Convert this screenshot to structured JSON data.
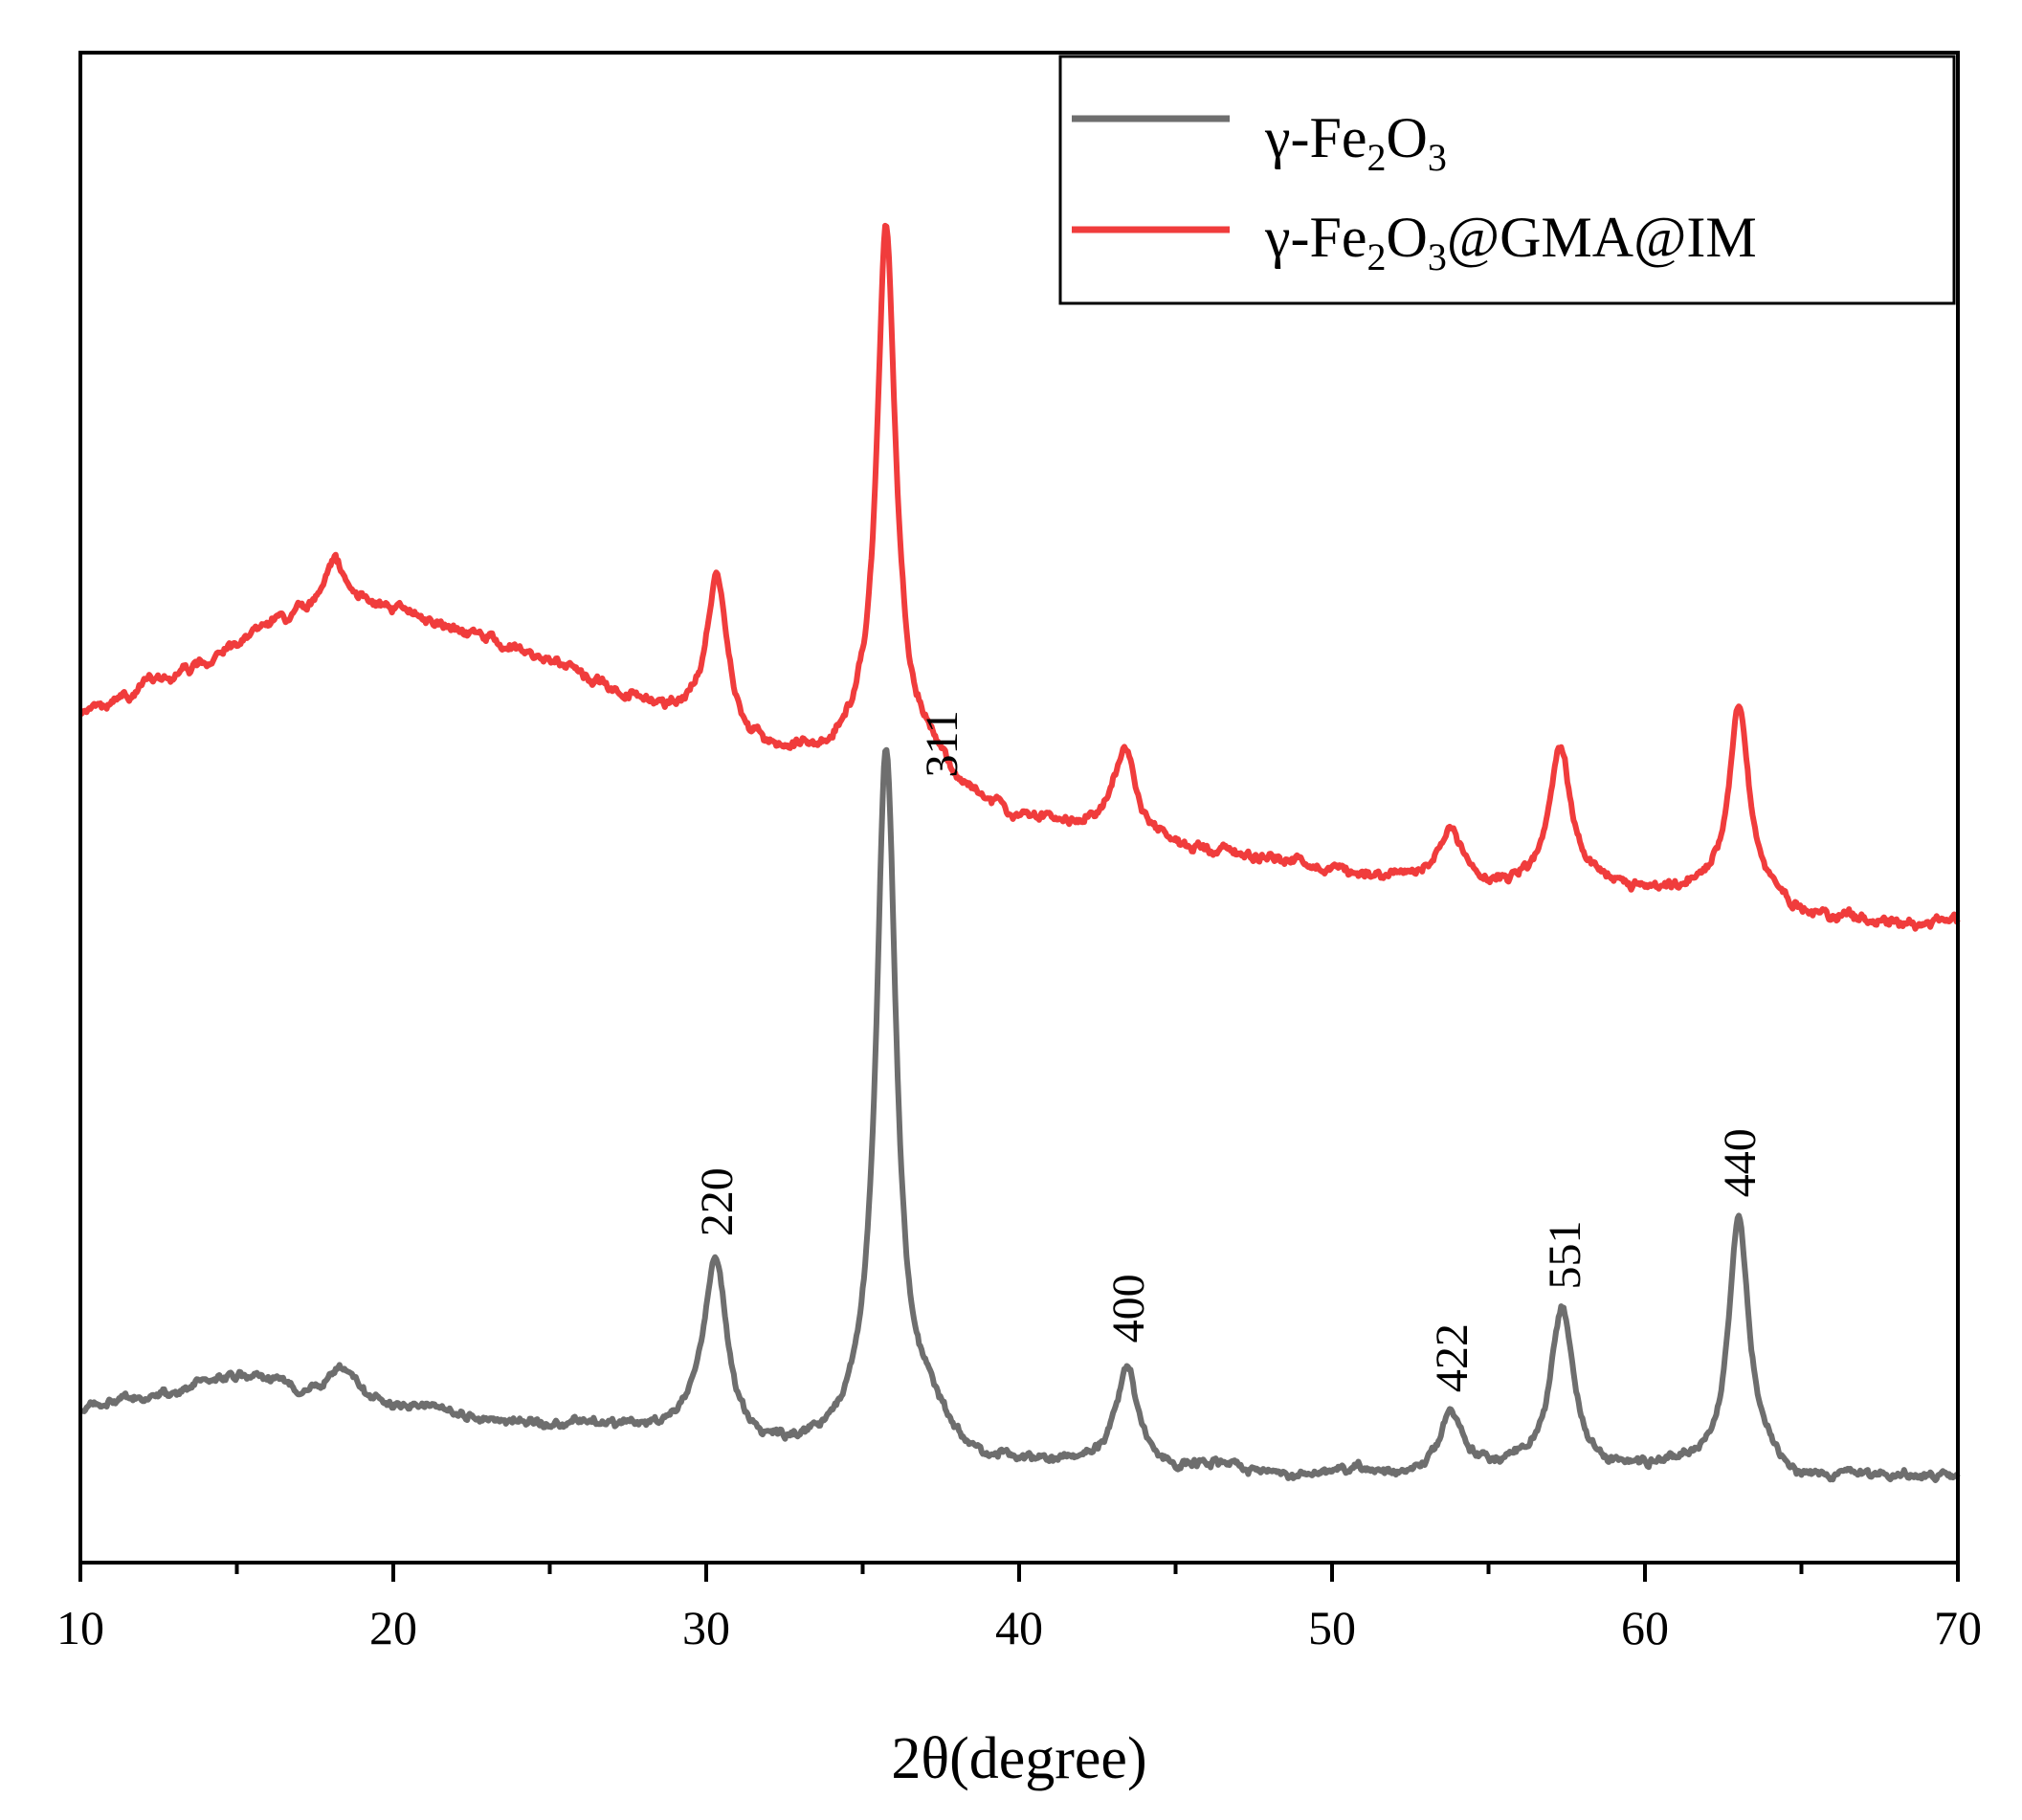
{
  "chart_data": {
    "type": "line",
    "title": "",
    "xlabel": "2θ(degree)",
    "ylabel": "",
    "xlim": [
      10,
      70
    ],
    "ylim": [
      0,
      100
    ],
    "xticks": [
      10,
      20,
      30,
      40,
      50,
      60,
      70
    ],
    "yticks_visible": false,
    "grid": false,
    "legend_position": "top-right",
    "series": [
      {
        "name": "γ-Fe2O3",
        "legend_main": "γ-Fe",
        "legend_sub1": "2",
        "legend_mid": "O",
        "legend_sub2": "3",
        "legend_tail": "",
        "color": "#6e6e6e",
        "baseline": [
          [
            10,
            10.0
          ],
          [
            11,
            10.6
          ],
          [
            12,
            10.8
          ],
          [
            13,
            11.2
          ],
          [
            14,
            12.0
          ],
          [
            15,
            12.3
          ],
          [
            16,
            12.1
          ],
          [
            17,
            11.3
          ],
          [
            18,
            11.4
          ],
          [
            19,
            10.8
          ],
          [
            20,
            10.2
          ],
          [
            21,
            10.4
          ],
          [
            22,
            9.9
          ],
          [
            23,
            9.4
          ],
          [
            24,
            9.2
          ],
          [
            25,
            9.0
          ],
          [
            26,
            9.3
          ],
          [
            27,
            9.0
          ],
          [
            28,
            8.8
          ],
          [
            29,
            8.9
          ],
          [
            30,
            9.0
          ],
          [
            31,
            8.0
          ],
          [
            32,
            7.4
          ],
          [
            33,
            7.4
          ],
          [
            34,
            7.8
          ],
          [
            35,
            8.4
          ],
          [
            36,
            8.4
          ],
          [
            37,
            8.0
          ],
          [
            38,
            7.0
          ],
          [
            39,
            6.6
          ],
          [
            40,
            6.5
          ],
          [
            41,
            6.5
          ],
          [
            42,
            6.6
          ],
          [
            43,
            6.8
          ],
          [
            44,
            6.7
          ],
          [
            45,
            6.1
          ],
          [
            46,
            6.4
          ],
          [
            47,
            6.1
          ],
          [
            48,
            5.8
          ],
          [
            49,
            5.7
          ],
          [
            50,
            5.9
          ],
          [
            51,
            6.0
          ],
          [
            52,
            5.9
          ],
          [
            53,
            6.0
          ],
          [
            54,
            6.1
          ],
          [
            55,
            6.2
          ],
          [
            56,
            6.4
          ],
          [
            57,
            6.5
          ],
          [
            58,
            6.5
          ],
          [
            59,
            6.0
          ],
          [
            60,
            6.2
          ],
          [
            61,
            6.4
          ],
          [
            62,
            6.4
          ],
          [
            63,
            6.5
          ],
          [
            64,
            6.6
          ],
          [
            65,
            5.3
          ],
          [
            66,
            5.6
          ],
          [
            67,
            5.8
          ],
          [
            68,
            5.7
          ],
          [
            69,
            5.6
          ],
          [
            70,
            5.5
          ]
        ],
        "peaks": [
          [
            18.4,
            1.8,
            0.45
          ],
          [
            30.3,
            11.5,
            0.42
          ],
          [
            35.75,
            45.5,
            0.38
          ],
          [
            37.2,
            1.5,
            0.6
          ],
          [
            43.45,
            6.4,
            0.38
          ],
          [
            53.8,
            3.8,
            0.4
          ],
          [
            57.35,
            10.2,
            0.42
          ],
          [
            63.0,
            16.3,
            0.38
          ]
        ],
        "noise": 0.35
      },
      {
        "name": "γ-Fe2O3@GMA@IM",
        "legend_main": "γ-Fe",
        "legend_sub1": "2",
        "legend_mid": "O",
        "legend_sub2": "3",
        "legend_tail": "@GMA@IM",
        "color": "#f03c3c",
        "baseline": [
          [
            10,
            56.0
          ],
          [
            11,
            56.8
          ],
          [
            12,
            57.5
          ],
          [
            13,
            58.4
          ],
          [
            14,
            59.6
          ],
          [
            15,
            61.0
          ],
          [
            16,
            62.2
          ],
          [
            17,
            62.8
          ],
          [
            18,
            63.0
          ],
          [
            19,
            63.3
          ],
          [
            20,
            63.1
          ],
          [
            21,
            62.4
          ],
          [
            22,
            61.7
          ],
          [
            23,
            61.1
          ],
          [
            24,
            60.4
          ],
          [
            25,
            59.7
          ],
          [
            26,
            58.8
          ],
          [
            27,
            57.8
          ],
          [
            28,
            56.9
          ],
          [
            29,
            56.3
          ],
          [
            30,
            56.0
          ],
          [
            31,
            54.4
          ],
          [
            32,
            53.5
          ],
          [
            33,
            53.4
          ],
          [
            34,
            53.4
          ],
          [
            35,
            54.1
          ],
          [
            36,
            54.2
          ],
          [
            37,
            52.8
          ],
          [
            38,
            51.0
          ],
          [
            39,
            50.0
          ],
          [
            40,
            49.2
          ],
          [
            41,
            48.9
          ],
          [
            42,
            48.9
          ],
          [
            43,
            49.0
          ],
          [
            44,
            48.1
          ],
          [
            45,
            47.4
          ],
          [
            46,
            47.2
          ],
          [
            47,
            46.9
          ],
          [
            48,
            46.7
          ],
          [
            49,
            46.3
          ],
          [
            50,
            45.9
          ],
          [
            51,
            45.6
          ],
          [
            52,
            45.5
          ],
          [
            53,
            45.3
          ],
          [
            54,
            45.0
          ],
          [
            55,
            44.8
          ],
          [
            56,
            44.9
          ],
          [
            57,
            45.4
          ],
          [
            58,
            45.2
          ],
          [
            59,
            44.6
          ],
          [
            60,
            44.3
          ],
          [
            61,
            44.2
          ],
          [
            62,
            44.5
          ],
          [
            63,
            44.4
          ],
          [
            64,
            43.8
          ],
          [
            65,
            43.0
          ],
          [
            66,
            42.7
          ],
          [
            67,
            42.6
          ],
          [
            68,
            42.4
          ],
          [
            69,
            42.3
          ],
          [
            70,
            42.5
          ]
        ],
        "peaks": [
          [
            12.2,
            0.8,
            0.3
          ],
          [
            18.1,
            3.6,
            0.38
          ],
          [
            30.35,
            9.8,
            0.38
          ],
          [
            35.75,
            34.0,
            0.36
          ],
          [
            37.2,
            0.8,
            0.5
          ],
          [
            43.4,
            5.2,
            0.38
          ],
          [
            53.8,
            3.4,
            0.38
          ],
          [
            57.3,
            8.4,
            0.4
          ],
          [
            63.0,
            12.5,
            0.38
          ]
        ],
        "noise": 0.4
      }
    ],
    "annotations": [
      {
        "text": "220",
        "x": 30.3
      },
      {
        "text": "311",
        "x": 37.5
      },
      {
        "text": "400",
        "x": 43.45
      },
      {
        "text": "422",
        "x": 53.8
      },
      {
        "text": "551",
        "x": 57.4
      },
      {
        "text": "440",
        "x": 63.0
      }
    ]
  }
}
